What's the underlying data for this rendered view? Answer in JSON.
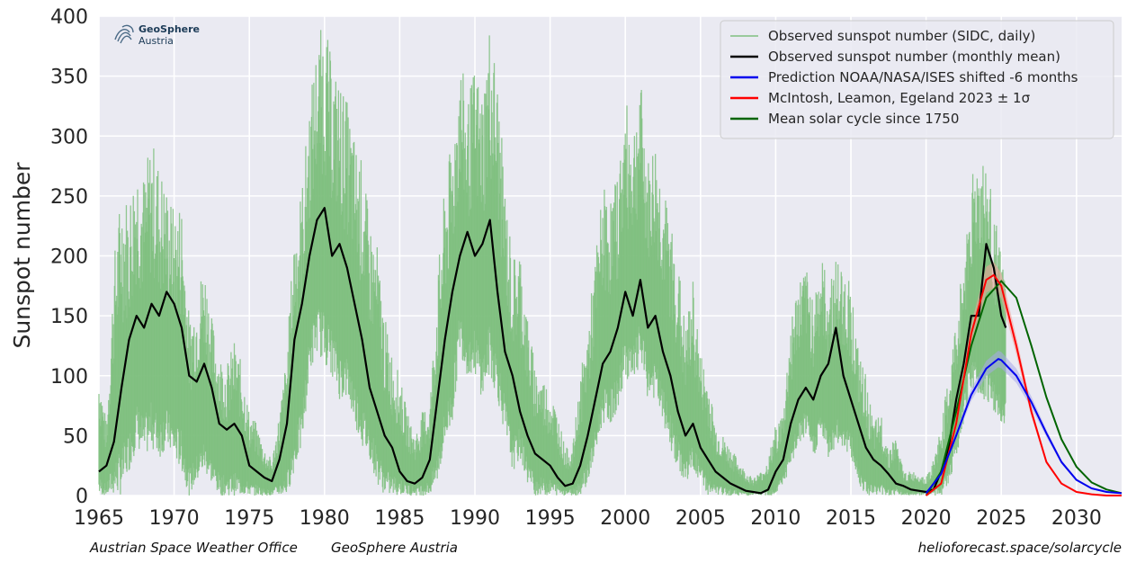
{
  "logo": {
    "name": "GeoSphere",
    "subtitle": "Austria"
  },
  "footer": {
    "left_1": "Austrian Space Weather Office",
    "left_2": "GeoSphere Austria",
    "right": "helioforecast.space/solarcycle"
  },
  "colors": {
    "plot_background": "#eaeaf2",
    "grid": "#ffffff",
    "daily": "#7fbf7f",
    "monthly": "#000000",
    "noaa": "#0000ee",
    "mcintosh": "#ff0000",
    "mean_cycle": "#006400",
    "mcintosh_band": "#f4a09a",
    "noaa_band": "#a8a8ea"
  },
  "chart_data": {
    "type": "line",
    "title": "",
    "xlabel": "",
    "ylabel": "Sunspot number",
    "xlim": [
      1965,
      2033
    ],
    "ylim": [
      0,
      400
    ],
    "xticks": [
      "1965",
      "1970",
      "1975",
      "1980",
      "1985",
      "1990",
      "1995",
      "2000",
      "2005",
      "2010",
      "2015",
      "2020",
      "2025",
      "2030"
    ],
    "yticks": [
      "0",
      "50",
      "100",
      "150",
      "200",
      "250",
      "300",
      "350",
      "400"
    ],
    "grid": true,
    "legend_position": "top-right",
    "series": [
      {
        "name": "Observed sunspot number (SIDC, daily)",
        "style": "thin green spiky band",
        "x": [
          1965.0,
          1965.5,
          1966.0,
          1966.5,
          1967.0,
          1967.5,
          1968.0,
          1968.5,
          1969.0,
          1969.5,
          1970.0,
          1970.5,
          1971.0,
          1971.5,
          1972.0,
          1972.5,
          1973.0,
          1973.5,
          1974.0,
          1974.5,
          1975.0,
          1975.5,
          1976.0,
          1976.5,
          1977.0,
          1977.5,
          1978.0,
          1978.5,
          1979.0,
          1979.5,
          1980.0,
          1980.5,
          1981.0,
          1981.5,
          1982.0,
          1982.5,
          1983.0,
          1983.5,
          1984.0,
          1984.5,
          1985.0,
          1985.5,
          1986.0,
          1986.5,
          1987.0,
          1987.5,
          1988.0,
          1988.5,
          1989.0,
          1989.5,
          1990.0,
          1990.5,
          1991.0,
          1991.5,
          1992.0,
          1992.5,
          1993.0,
          1993.5,
          1994.0,
          1994.5,
          1995.0,
          1995.5,
          1996.0,
          1996.5,
          1997.0,
          1997.5,
          1998.0,
          1998.5,
          1999.0,
          1999.5,
          2000.0,
          2000.5,
          2001.0,
          2001.5,
          2002.0,
          2002.5,
          2003.0,
          2003.5,
          2004.0,
          2004.5,
          2005.0,
          2005.5,
          2006.0,
          2006.5,
          2007.0,
          2007.5,
          2008.0,
          2008.5,
          2009.0,
          2009.5,
          2010.0,
          2010.5,
          2011.0,
          2011.5,
          2012.0,
          2012.5,
          2013.0,
          2013.5,
          2014.0,
          2014.5,
          2015.0,
          2015.5,
          2016.0,
          2016.5,
          2017.0,
          2017.5,
          2018.0,
          2018.5,
          2019.0,
          2019.5,
          2020.0,
          2020.5,
          2021.0,
          2021.5,
          2022.0,
          2022.5,
          2023.0,
          2023.5,
          2024.0,
          2024.5,
          2025.0,
          2025.3
        ],
        "high": [
          110,
          60,
          200,
          260,
          250,
          290,
          270,
          300,
          280,
          260,
          240,
          250,
          150,
          170,
          200,
          150,
          120,
          110,
          130,
          110,
          70,
          60,
          40,
          30,
          70,
          120,
          230,
          260,
          330,
          380,
          400,
          360,
          350,
          330,
          300,
          280,
          230,
          210,
          150,
          120,
          100,
          70,
          50,
          70,
          80,
          180,
          260,
          300,
          370,
          330,
          360,
          340,
          400,
          350,
          260,
          200,
          210,
          150,
          110,
          100,
          90,
          70,
          40,
          40,
          100,
          140,
          200,
          260,
          250,
          270,
          330,
          310,
          350,
          280,
          300,
          260,
          230,
          200,
          140,
          180,
          120,
          100,
          60,
          50,
          40,
          30,
          20,
          15,
          20,
          30,
          60,
          70,
          150,
          180,
          190,
          170,
          200,
          180,
          200,
          190,
          180,
          120,
          100,
          60,
          70,
          40,
          50,
          20,
          20,
          20,
          15,
          30,
          60,
          100,
          150,
          200,
          270,
          290,
          280,
          240,
          200,
          180
        ],
        "low": [
          0,
          0,
          0,
          0,
          20,
          40,
          30,
          40,
          30,
          40,
          30,
          20,
          0,
          10,
          20,
          10,
          0,
          0,
          0,
          0,
          0,
          0,
          0,
          0,
          0,
          0,
          20,
          40,
          100,
          120,
          110,
          100,
          80,
          80,
          60,
          40,
          30,
          10,
          0,
          0,
          0,
          0,
          0,
          0,
          0,
          10,
          40,
          60,
          120,
          100,
          100,
          80,
          100,
          80,
          50,
          20,
          30,
          10,
          0,
          0,
          0,
          0,
          0,
          0,
          0,
          10,
          30,
          60,
          60,
          70,
          100,
          90,
          110,
          80,
          80,
          60,
          40,
          20,
          10,
          20,
          10,
          0,
          0,
          0,
          0,
          0,
          0,
          0,
          0,
          0,
          0,
          10,
          20,
          40,
          50,
          30,
          50,
          30,
          40,
          40,
          30,
          10,
          0,
          0,
          0,
          0,
          0,
          0,
          0,
          0,
          0,
          0,
          0,
          10,
          30,
          60,
          90,
          80,
          80,
          70,
          60,
          60
        ]
      },
      {
        "name": "Observed sunspot number (monthly mean)",
        "x": [
          1965.0,
          1965.5,
          1966.0,
          1966.5,
          1967.0,
          1967.5,
          1968.0,
          1968.5,
          1969.0,
          1969.5,
          1970.0,
          1970.5,
          1971.0,
          1971.5,
          1972.0,
          1972.5,
          1973.0,
          1973.5,
          1974.0,
          1974.5,
          1975.0,
          1975.5,
          1976.0,
          1976.5,
          1977.0,
          1977.5,
          1978.0,
          1978.5,
          1979.0,
          1979.5,
          1980.0,
          1980.5,
          1981.0,
          1981.5,
          1982.0,
          1982.5,
          1983.0,
          1983.5,
          1984.0,
          1984.5,
          1985.0,
          1985.5,
          1986.0,
          1986.5,
          1987.0,
          1987.5,
          1988.0,
          1988.5,
          1989.0,
          1989.5,
          1990.0,
          1990.5,
          1991.0,
          1991.5,
          1992.0,
          1992.5,
          1993.0,
          1993.5,
          1994.0,
          1994.5,
          1995.0,
          1995.5,
          1996.0,
          1996.5,
          1997.0,
          1997.5,
          1998.0,
          1998.5,
          1999.0,
          1999.5,
          2000.0,
          2000.5,
          2001.0,
          2001.5,
          2002.0,
          2002.5,
          2003.0,
          2003.5,
          2004.0,
          2004.5,
          2005.0,
          2005.5,
          2006.0,
          2006.5,
          2007.0,
          2007.5,
          2008.0,
          2008.5,
          2009.0,
          2009.5,
          2010.0,
          2010.5,
          2011.0,
          2011.5,
          2012.0,
          2012.5,
          2013.0,
          2013.5,
          2014.0,
          2014.5,
          2015.0,
          2015.5,
          2016.0,
          2016.5,
          2017.0,
          2017.5,
          2018.0,
          2018.5,
          2019.0,
          2019.5,
          2020.0,
          2020.5,
          2021.0,
          2021.5,
          2022.0,
          2022.5,
          2023.0,
          2023.5,
          2024.0,
          2024.5,
          2025.0,
          2025.3
        ],
        "y": [
          20,
          25,
          45,
          90,
          130,
          150,
          140,
          160,
          150,
          170,
          160,
          140,
          100,
          95,
          110,
          90,
          60,
          55,
          60,
          50,
          25,
          20,
          15,
          12,
          30,
          60,
          130,
          160,
          200,
          230,
          240,
          200,
          210,
          190,
          160,
          130,
          90,
          70,
          50,
          40,
          20,
          12,
          10,
          15,
          30,
          80,
          130,
          170,
          200,
          220,
          200,
          210,
          230,
          170,
          120,
          100,
          70,
          50,
          35,
          30,
          25,
          15,
          8,
          10,
          25,
          50,
          80,
          110,
          120,
          140,
          170,
          150,
          180,
          140,
          150,
          120,
          100,
          70,
          50,
          60,
          40,
          30,
          20,
          15,
          10,
          7,
          4,
          3,
          2,
          5,
          20,
          30,
          60,
          80,
          90,
          80,
          100,
          110,
          140,
          100,
          80,
          60,
          40,
          30,
          25,
          18,
          10,
          8,
          5,
          4,
          3,
          5,
          20,
          40,
          80,
          110,
          150,
          150,
          210,
          190,
          150,
          140
        ]
      },
      {
        "name": "Prediction NOAA/NASA/ISES shifted -6 months",
        "x": [
          2020.0,
          2021.0,
          2022.0,
          2023.0,
          2024.0,
          2024.8,
          2025.0,
          2026.0,
          2027.0,
          2028.0,
          2029.0,
          2030.0,
          2031.0,
          2032.0,
          2033.0
        ],
        "y": [
          2,
          18,
          50,
          84,
          106,
          114,
          113,
          100,
          78,
          52,
          28,
          13,
          6,
          3,
          2
        ]
      },
      {
        "name": "McIntosh, Leamon, Egeland 2023 ± 1σ",
        "x": [
          2020.0,
          2021.0,
          2022.0,
          2023.0,
          2024.0,
          2024.5,
          2025.0,
          2026.0,
          2027.0,
          2028.0,
          2029.0,
          2030.0,
          2031.0,
          2032.0,
          2033.0
        ],
        "y": [
          0,
          10,
          60,
          135,
          180,
          184,
          175,
          125,
          70,
          28,
          10,
          3,
          1,
          0,
          0
        ]
      },
      {
        "name": "Mean solar cycle since 1750",
        "x": [
          2020.0,
          2021.0,
          2022.0,
          2023.0,
          2024.0,
          2025.0,
          2026.0,
          2027.0,
          2028.0,
          2029.0,
          2030.0,
          2031.0,
          2032.0,
          2033.0
        ],
        "y": [
          0,
          20,
          70,
          125,
          165,
          179,
          165,
          125,
          82,
          47,
          24,
          11,
          5,
          2
        ]
      }
    ]
  }
}
